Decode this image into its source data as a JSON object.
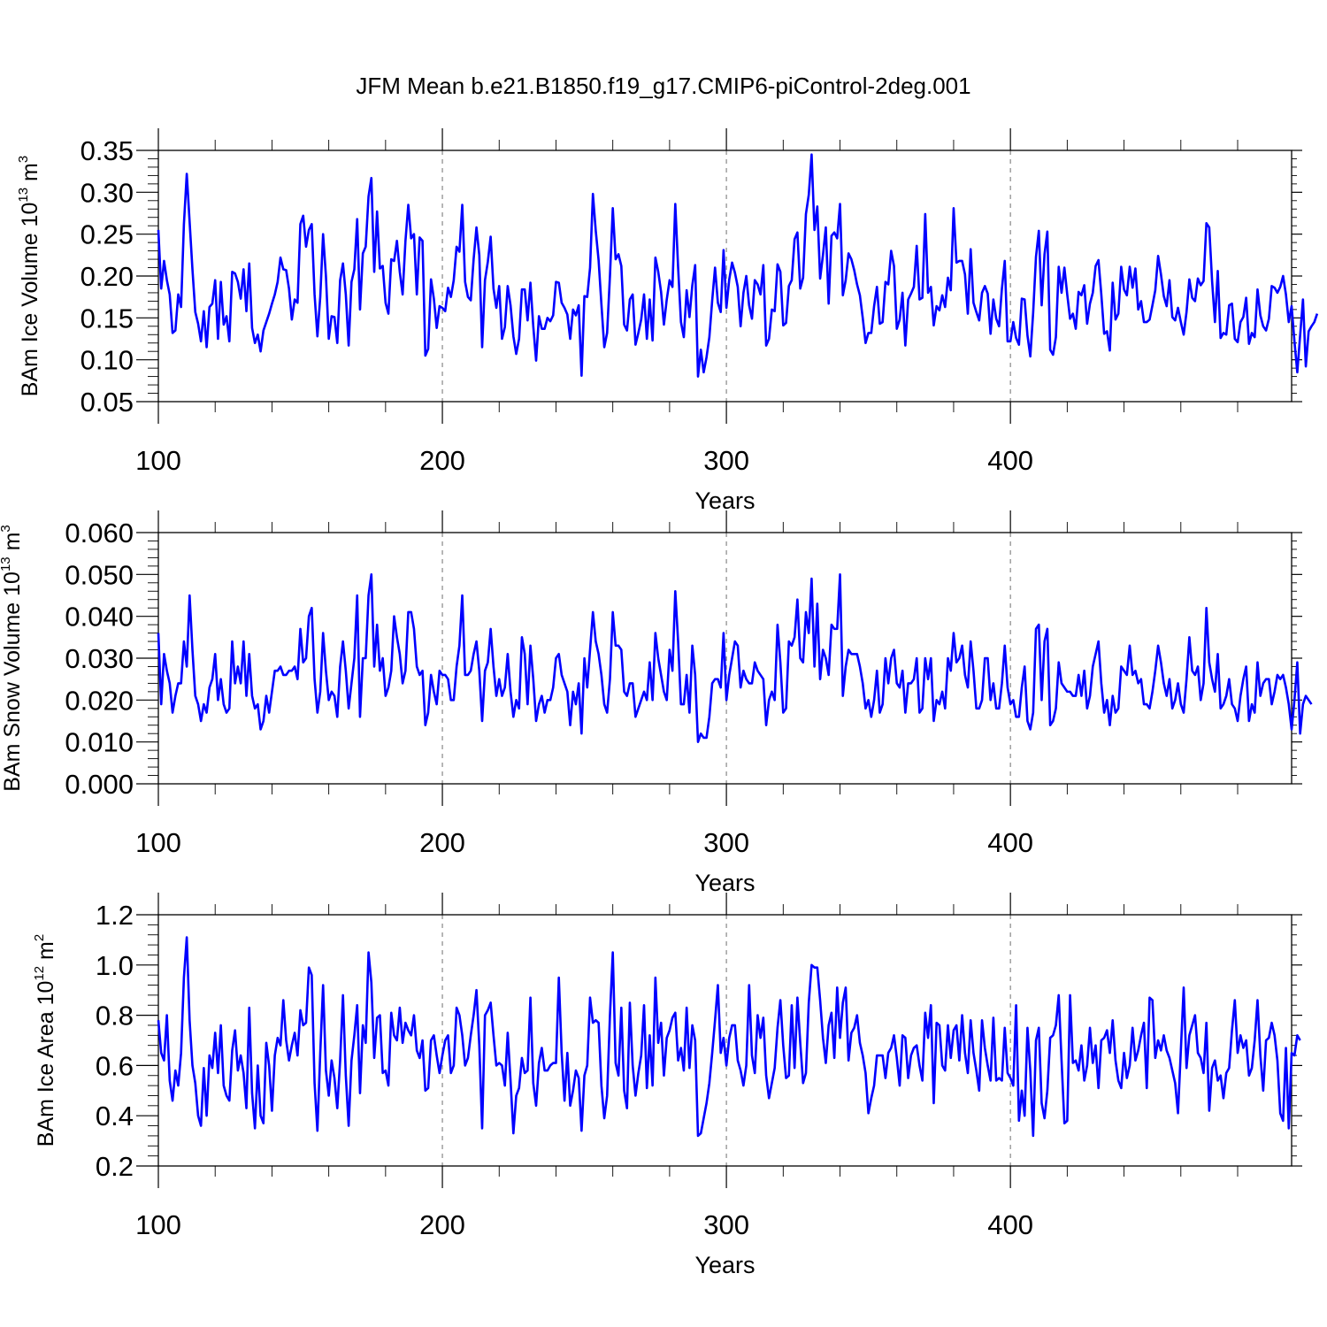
{
  "title": "JFM Mean b.e21.B1850.f19_g17.CMIP6-piControl-2deg.001",
  "chart_data": [
    {
      "type": "line",
      "ylabel": {
        "prefix": "BAm Ice Volume 10",
        "exp": "13",
        "unit": " m",
        "unit_exp": "3"
      },
      "xlabel": "Years",
      "xlim": [
        100,
        499
      ],
      "xticks": [
        100,
        200,
        300,
        400
      ],
      "ylim": [
        0.05,
        0.35
      ],
      "yticks": [
        "0.05",
        "0.10",
        "0.15",
        "0.20",
        "0.25",
        "0.30",
        "0.35"
      ],
      "grid": "vertical dashed at x ticks",
      "color": "#0000ff",
      "x_start": 100,
      "values": [
        0.255,
        0.185,
        0.218,
        0.195,
        0.178,
        0.132,
        0.135,
        0.178,
        0.163,
        0.262,
        0.322,
        0.265,
        0.208,
        0.157,
        0.143,
        0.122,
        0.158,
        0.115,
        0.163,
        0.167,
        0.195,
        0.125,
        0.193,
        0.142,
        0.152,
        0.122,
        0.205,
        0.203,
        0.193,
        0.173,
        0.208,
        0.158,
        0.215,
        0.138,
        0.12,
        0.13,
        0.11,
        0.135,
        0.145,
        0.155,
        0.167,
        0.178,
        0.193,
        0.222,
        0.208,
        0.207,
        0.185,
        0.148,
        0.172,
        0.168,
        0.262,
        0.272,
        0.235,
        0.255,
        0.262,
        0.178,
        0.128,
        0.175,
        0.25,
        0.2,
        0.125,
        0.152,
        0.151,
        0.12,
        0.195,
        0.215,
        0.178,
        0.117,
        0.193,
        0.208,
        0.268,
        0.16,
        0.227,
        0.235,
        0.295,
        0.317,
        0.205,
        0.277,
        0.209,
        0.212,
        0.168,
        0.155,
        0.22,
        0.218,
        0.242,
        0.205,
        0.178,
        0.242,
        0.285,
        0.245,
        0.25,
        0.178,
        0.246,
        0.242,
        0.105,
        0.113,
        0.196,
        0.173,
        0.138,
        0.164,
        0.162,
        0.158,
        0.186,
        0.175,
        0.195,
        0.235,
        0.229,
        0.285,
        0.193,
        0.175,
        0.171,
        0.22,
        0.258,
        0.225,
        0.115,
        0.195,
        0.217,
        0.247,
        0.185,
        0.162,
        0.188,
        0.125,
        0.139,
        0.188,
        0.165,
        0.128,
        0.107,
        0.125,
        0.184,
        0.184,
        0.147,
        0.192,
        0.14,
        0.099,
        0.152,
        0.137,
        0.137,
        0.15,
        0.146,
        0.153,
        0.193,
        0.192,
        0.168,
        0.162,
        0.154,
        0.125,
        0.16,
        0.153,
        0.165,
        0.081,
        0.176,
        0.175,
        0.21,
        0.298,
        0.254,
        0.219,
        0.166,
        0.115,
        0.132,
        0.2,
        0.281,
        0.22,
        0.226,
        0.212,
        0.142,
        0.135,
        0.172,
        0.178,
        0.118,
        0.132,
        0.148,
        0.178,
        0.125,
        0.172,
        0.123,
        0.222,
        0.205,
        0.181,
        0.142,
        0.172,
        0.195,
        0.187,
        0.286,
        0.21,
        0.145,
        0.127,
        0.183,
        0.151,
        0.189,
        0.213,
        0.08,
        0.112,
        0.085,
        0.103,
        0.127,
        0.171,
        0.21,
        0.168,
        0.157,
        0.231,
        0.162,
        0.196,
        0.216,
        0.204,
        0.187,
        0.14,
        0.18,
        0.2,
        0.165,
        0.149,
        0.195,
        0.19,
        0.178,
        0.213,
        0.117,
        0.125,
        0.16,
        0.158,
        0.214,
        0.205,
        0.141,
        0.144,
        0.188,
        0.195,
        0.244,
        0.252,
        0.185,
        0.198,
        0.274,
        0.297,
        0.345,
        0.255,
        0.283,
        0.197,
        0.225,
        0.258,
        0.167,
        0.248,
        0.252,
        0.245,
        0.286,
        0.177,
        0.195,
        0.227,
        0.22,
        0.207,
        0.19,
        0.177,
        0.15,
        0.12,
        0.132,
        0.132,
        0.164,
        0.187,
        0.143,
        0.145,
        0.193,
        0.19,
        0.23,
        0.212,
        0.137,
        0.148,
        0.18,
        0.117,
        0.172,
        0.179,
        0.187,
        0.236,
        0.172,
        0.174,
        0.274,
        0.18,
        0.187,
        0.141,
        0.164,
        0.159,
        0.177,
        0.163,
        0.198,
        0.183,
        0.281,
        0.216,
        0.218,
        0.218,
        0.202,
        0.155,
        0.232,
        0.168,
        0.157,
        0.147,
        0.18,
        0.188,
        0.179,
        0.131,
        0.172,
        0.149,
        0.14,
        0.185,
        0.218,
        0.122,
        0.122,
        0.145,
        0.126,
        0.118,
        0.173,
        0.172,
        0.129,
        0.104,
        0.156,
        0.223,
        0.254,
        0.165,
        0.226,
        0.253,
        0.112,
        0.106,
        0.127,
        0.211,
        0.18,
        0.21,
        0.178,
        0.149,
        0.155,
        0.137,
        0.181,
        0.177,
        0.189,
        0.143,
        0.167,
        0.18,
        0.212,
        0.219,
        0.178,
        0.131,
        0.134,
        0.111,
        0.192,
        0.148,
        0.155,
        0.211,
        0.184,
        0.177,
        0.211,
        0.186,
        0.209,
        0.16,
        0.17,
        0.145,
        0.145,
        0.148,
        0.165,
        0.183,
        0.224,
        0.202,
        0.176,
        0.164,
        0.195,
        0.151,
        0.147,
        0.162,
        0.145,
        0.13,
        0.157,
        0.196,
        0.174,
        0.17,
        0.197,
        0.189,
        0.194,
        0.263,
        0.258,
        0.194,
        0.145,
        0.206,
        0.126,
        0.132,
        0.13,
        0.165,
        0.167,
        0.125,
        0.121,
        0.145,
        0.151,
        0.174,
        0.119,
        0.132,
        0.127,
        0.184,
        0.153,
        0.14,
        0.135,
        0.149,
        0.188,
        0.186,
        0.18,
        0.187,
        0.2,
        0.178,
        0.145,
        0.164,
        0.122,
        0.085,
        0.129,
        0.172,
        0.092,
        0.134,
        0.14,
        0.145,
        0.155
      ]
    },
    {
      "type": "line",
      "ylabel": {
        "prefix": "BAm Snow Volume 10",
        "exp": "13",
        "unit": " m",
        "unit_exp": "3"
      },
      "xlabel": "Years",
      "xlim": [
        100,
        499
      ],
      "xticks": [
        100,
        200,
        300,
        400
      ],
      "ylim": [
        0.0,
        0.06
      ],
      "yticks": [
        "0.000",
        "0.010",
        "0.020",
        "0.030",
        "0.040",
        "0.050",
        "0.060"
      ],
      "grid": "vertical dashed at x ticks",
      "color": "#0000ff",
      "x_start": 100,
      "values": [
        0.036,
        0.019,
        0.031,
        0.027,
        0.024,
        0.017,
        0.021,
        0.024,
        0.024,
        0.034,
        0.028,
        0.045,
        0.032,
        0.021,
        0.019,
        0.015,
        0.019,
        0.017,
        0.023,
        0.025,
        0.031,
        0.02,
        0.025,
        0.019,
        0.017,
        0.018,
        0.034,
        0.024,
        0.028,
        0.024,
        0.034,
        0.021,
        0.031,
        0.021,
        0.018,
        0.019,
        0.013,
        0.015,
        0.021,
        0.017,
        0.022,
        0.027,
        0.027,
        0.028,
        0.026,
        0.026,
        0.027,
        0.027,
        0.028,
        0.025,
        0.037,
        0.029,
        0.03,
        0.04,
        0.042,
        0.025,
        0.017,
        0.022,
        0.036,
        0.027,
        0.02,
        0.022,
        0.021,
        0.016,
        0.028,
        0.034,
        0.027,
        0.018,
        0.024,
        0.03,
        0.045,
        0.016,
        0.03,
        0.03,
        0.045,
        0.05,
        0.028,
        0.038,
        0.027,
        0.03,
        0.021,
        0.023,
        0.027,
        0.04,
        0.035,
        0.031,
        0.024,
        0.027,
        0.041,
        0.041,
        0.037,
        0.028,
        0.026,
        0.027,
        0.014,
        0.017,
        0.026,
        0.022,
        0.019,
        0.027,
        0.026,
        0.026,
        0.025,
        0.02,
        0.02,
        0.028,
        0.033,
        0.045,
        0.026,
        0.026,
        0.027,
        0.031,
        0.034,
        0.027,
        0.015,
        0.027,
        0.029,
        0.037,
        0.028,
        0.021,
        0.025,
        0.021,
        0.023,
        0.031,
        0.022,
        0.016,
        0.02,
        0.018,
        0.035,
        0.031,
        0.019,
        0.033,
        0.025,
        0.015,
        0.019,
        0.021,
        0.017,
        0.02,
        0.02,
        0.023,
        0.03,
        0.031,
        0.026,
        0.024,
        0.022,
        0.014,
        0.022,
        0.019,
        0.024,
        0.012,
        0.03,
        0.023,
        0.032,
        0.041,
        0.034,
        0.031,
        0.026,
        0.019,
        0.017,
        0.025,
        0.041,
        0.033,
        0.033,
        0.032,
        0.022,
        0.021,
        0.024,
        0.024,
        0.016,
        0.018,
        0.02,
        0.022,
        0.02,
        0.029,
        0.02,
        0.036,
        0.03,
        0.026,
        0.022,
        0.02,
        0.032,
        0.027,
        0.046,
        0.034,
        0.019,
        0.019,
        0.026,
        0.017,
        0.033,
        0.026,
        0.01,
        0.012,
        0.011,
        0.011,
        0.016,
        0.024,
        0.025,
        0.025,
        0.023,
        0.036,
        0.02,
        0.026,
        0.03,
        0.034,
        0.033,
        0.023,
        0.027,
        0.025,
        0.024,
        0.024,
        0.029,
        0.027,
        0.026,
        0.025,
        0.014,
        0.02,
        0.022,
        0.02,
        0.038,
        0.029,
        0.017,
        0.018,
        0.034,
        0.033,
        0.035,
        0.044,
        0.03,
        0.029,
        0.041,
        0.036,
        0.049,
        0.028,
        0.043,
        0.025,
        0.032,
        0.03,
        0.026,
        0.038,
        0.037,
        0.037,
        0.05,
        0.021,
        0.028,
        0.032,
        0.031,
        0.031,
        0.031,
        0.028,
        0.024,
        0.018,
        0.02,
        0.016,
        0.02,
        0.027,
        0.017,
        0.019,
        0.03,
        0.024,
        0.03,
        0.032,
        0.024,
        0.023,
        0.027,
        0.017,
        0.024,
        0.024,
        0.025,
        0.03,
        0.017,
        0.018,
        0.03,
        0.025,
        0.03,
        0.015,
        0.02,
        0.019,
        0.022,
        0.018,
        0.03,
        0.027,
        0.036,
        0.029,
        0.03,
        0.033,
        0.026,
        0.023,
        0.034,
        0.027,
        0.018,
        0.018,
        0.02,
        0.03,
        0.03,
        0.02,
        0.024,
        0.018,
        0.018,
        0.024,
        0.033,
        0.023,
        0.019,
        0.02,
        0.016,
        0.016,
        0.023,
        0.028,
        0.015,
        0.013,
        0.017,
        0.037,
        0.038,
        0.02,
        0.034,
        0.037,
        0.014,
        0.015,
        0.018,
        0.029,
        0.024,
        0.023,
        0.022,
        0.022,
        0.021,
        0.021,
        0.026,
        0.021,
        0.027,
        0.018,
        0.021,
        0.028,
        0.031,
        0.034,
        0.024,
        0.017,
        0.02,
        0.014,
        0.021,
        0.017,
        0.018,
        0.028,
        0.027,
        0.026,
        0.033,
        0.026,
        0.027,
        0.024,
        0.025,
        0.019,
        0.019,
        0.018,
        0.022,
        0.027,
        0.033,
        0.029,
        0.024,
        0.021,
        0.025,
        0.018,
        0.02,
        0.024,
        0.019,
        0.017,
        0.025,
        0.035,
        0.027,
        0.026,
        0.028,
        0.02,
        0.024,
        0.042,
        0.029,
        0.025,
        0.022,
        0.031,
        0.018,
        0.019,
        0.021,
        0.025,
        0.019,
        0.018,
        0.015,
        0.021,
        0.025,
        0.028,
        0.015,
        0.019,
        0.017,
        0.029,
        0.021,
        0.024,
        0.025,
        0.025,
        0.019,
        0.022,
        0.026,
        0.025,
        0.026,
        0.023,
        0.019,
        0.013,
        0.02,
        0.029,
        0.012,
        0.019,
        0.021,
        0.02,
        0.019
      ]
    },
    {
      "type": "line",
      "ylabel": {
        "prefix": "BAm Ice Area 10",
        "exp": "12",
        "unit": " m",
        "unit_exp": "2"
      },
      "xlabel": "Years",
      "xlim": [
        100,
        499
      ],
      "xticks": [
        100,
        200,
        300,
        400
      ],
      "ylim": [
        0.2,
        1.2
      ],
      "yticks": [
        "0.2",
        "0.4",
        "0.6",
        "0.8",
        "1.0",
        "1.2"
      ],
      "grid": "vertical dashed at x ticks",
      "color": "#0000ff",
      "x_start": 100,
      "values": [
        0.78,
        0.65,
        0.62,
        0.8,
        0.54,
        0.46,
        0.58,
        0.52,
        0.65,
        0.95,
        1.11,
        0.78,
        0.6,
        0.53,
        0.4,
        0.36,
        0.59,
        0.4,
        0.64,
        0.59,
        0.73,
        0.57,
        0.76,
        0.52,
        0.48,
        0.46,
        0.66,
        0.74,
        0.58,
        0.64,
        0.57,
        0.43,
        0.83,
        0.49,
        0.35,
        0.6,
        0.4,
        0.37,
        0.69,
        0.6,
        0.42,
        0.64,
        0.71,
        0.68,
        0.86,
        0.7,
        0.62,
        0.68,
        0.73,
        0.64,
        0.82,
        0.76,
        0.77,
        0.99,
        0.96,
        0.53,
        0.34,
        0.65,
        0.92,
        0.58,
        0.48,
        0.62,
        0.55,
        0.43,
        0.62,
        0.88,
        0.56,
        0.36,
        0.62,
        0.72,
        0.84,
        0.49,
        0.76,
        0.69,
        1.05,
        0.93,
        0.63,
        0.79,
        0.8,
        0.57,
        0.58,
        0.52,
        0.81,
        0.72,
        0.7,
        0.83,
        0.69,
        0.77,
        0.74,
        0.72,
        0.8,
        0.66,
        0.63,
        0.7,
        0.5,
        0.51,
        0.7,
        0.72,
        0.64,
        0.57,
        0.64,
        0.7,
        0.72,
        0.57,
        0.6,
        0.83,
        0.8,
        0.72,
        0.6,
        0.63,
        0.72,
        0.8,
        0.9,
        0.68,
        0.35,
        0.8,
        0.82,
        0.85,
        0.72,
        0.6,
        0.61,
        0.6,
        0.52,
        0.73,
        0.54,
        0.33,
        0.48,
        0.51,
        0.63,
        0.57,
        0.58,
        0.87,
        0.53,
        0.44,
        0.61,
        0.67,
        0.58,
        0.58,
        0.6,
        0.61,
        0.61,
        0.95,
        0.65,
        0.46,
        0.65,
        0.44,
        0.5,
        0.58,
        0.55,
        0.34,
        0.56,
        0.6,
        0.87,
        0.77,
        0.78,
        0.77,
        0.52,
        0.39,
        0.48,
        0.8,
        1.05,
        0.61,
        0.56,
        0.83,
        0.5,
        0.43,
        0.85,
        0.6,
        0.48,
        0.57,
        0.64,
        0.84,
        0.51,
        0.72,
        0.52,
        0.95,
        0.69,
        0.77,
        0.56,
        0.71,
        0.74,
        0.79,
        0.81,
        0.62,
        0.67,
        0.58,
        0.83,
        0.59,
        0.76,
        0.7,
        0.32,
        0.33,
        0.39,
        0.45,
        0.53,
        0.65,
        0.78,
        0.92,
        0.65,
        0.71,
        0.6,
        0.71,
        0.76,
        0.76,
        0.62,
        0.58,
        0.52,
        0.6,
        0.92,
        0.64,
        0.57,
        0.8,
        0.71,
        0.79,
        0.56,
        0.47,
        0.53,
        0.59,
        0.75,
        0.86,
        0.68,
        0.55,
        0.56,
        0.84,
        0.59,
        0.87,
        0.69,
        0.53,
        0.57,
        0.85,
        1.0,
        0.99,
        0.99,
        0.86,
        0.71,
        0.61,
        0.76,
        0.81,
        0.63,
        0.91,
        0.71,
        0.85,
        0.91,
        0.62,
        0.73,
        0.75,
        0.8,
        0.69,
        0.64,
        0.57,
        0.41,
        0.47,
        0.52,
        0.64,
        0.64,
        0.64,
        0.55,
        0.65,
        0.67,
        0.72,
        0.63,
        0.52,
        0.72,
        0.71,
        0.55,
        0.64,
        0.67,
        0.68,
        0.6,
        0.54,
        0.81,
        0.71,
        0.84,
        0.45,
        0.77,
        0.76,
        0.6,
        0.58,
        0.76,
        0.63,
        0.74,
        0.76,
        0.62,
        0.8,
        0.65,
        0.57,
        0.78,
        0.65,
        0.58,
        0.5,
        0.78,
        0.67,
        0.6,
        0.54,
        0.79,
        0.54,
        0.55,
        0.54,
        0.75,
        0.57,
        0.55,
        0.52,
        0.84,
        0.38,
        0.5,
        0.4,
        0.75,
        0.58,
        0.32,
        0.7,
        0.75,
        0.45,
        0.39,
        0.5,
        0.71,
        0.72,
        0.76,
        0.88,
        0.62,
        0.37,
        0.38,
        0.88,
        0.61,
        0.62,
        0.58,
        0.68,
        0.54,
        0.6,
        0.75,
        0.61,
        0.68,
        0.51,
        0.7,
        0.71,
        0.74,
        0.65,
        0.78,
        0.62,
        0.54,
        0.51,
        0.65,
        0.55,
        0.6,
        0.75,
        0.62,
        0.66,
        0.72,
        0.77,
        0.51,
        0.87,
        0.86,
        0.63,
        0.7,
        0.66,
        0.72,
        0.66,
        0.63,
        0.58,
        0.53,
        0.41,
        0.66,
        0.91,
        0.59,
        0.72,
        0.76,
        0.8,
        0.65,
        0.63,
        0.57,
        0.77,
        0.42,
        0.59,
        0.62,
        0.54,
        0.56,
        0.47,
        0.57,
        0.59,
        0.74,
        0.86,
        0.65,
        0.72,
        0.67,
        0.7,
        0.56,
        0.59,
        0.7,
        0.86,
        0.64,
        0.5,
        0.7,
        0.71,
        0.77,
        0.72,
        0.62,
        0.41,
        0.38,
        0.67,
        0.35,
        0.65,
        0.64,
        0.72,
        0.7
      ]
    }
  ]
}
